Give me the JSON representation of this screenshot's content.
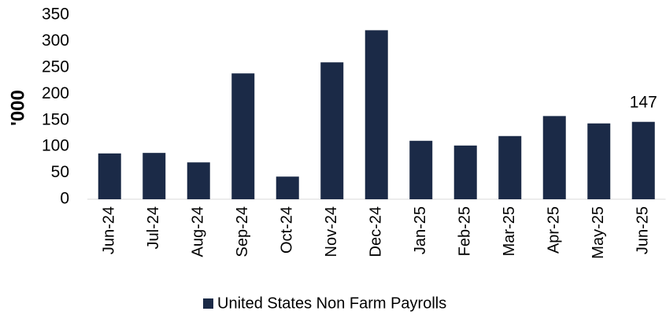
{
  "chart_data": {
    "type": "bar",
    "y_label": "'000",
    "categories": [
      "Jun-24",
      "Jul-24",
      "Aug-24",
      "Sep-24",
      "Oct-24",
      "Nov-24",
      "Dec-24",
      "Jan-25",
      "Feb-25",
      "Mar-25",
      "Apr-25",
      "May-25",
      "Jun-25"
    ],
    "series": [
      {
        "name": "United States Non Farm Payrolls",
        "color": "#1b2a47",
        "values": [
          87,
          88,
          70,
          239,
          43,
          260,
          321,
          111,
          102,
          120,
          158,
          144,
          147
        ],
        "value_labels": [
          null,
          null,
          null,
          null,
          null,
          null,
          null,
          null,
          null,
          null,
          null,
          null,
          "147"
        ]
      }
    ],
    "ylim": [
      0,
      350
    ],
    "yticks": [
      0,
      50,
      100,
      150,
      200,
      250,
      300,
      350
    ],
    "grid": false,
    "legend": "bottom"
  }
}
